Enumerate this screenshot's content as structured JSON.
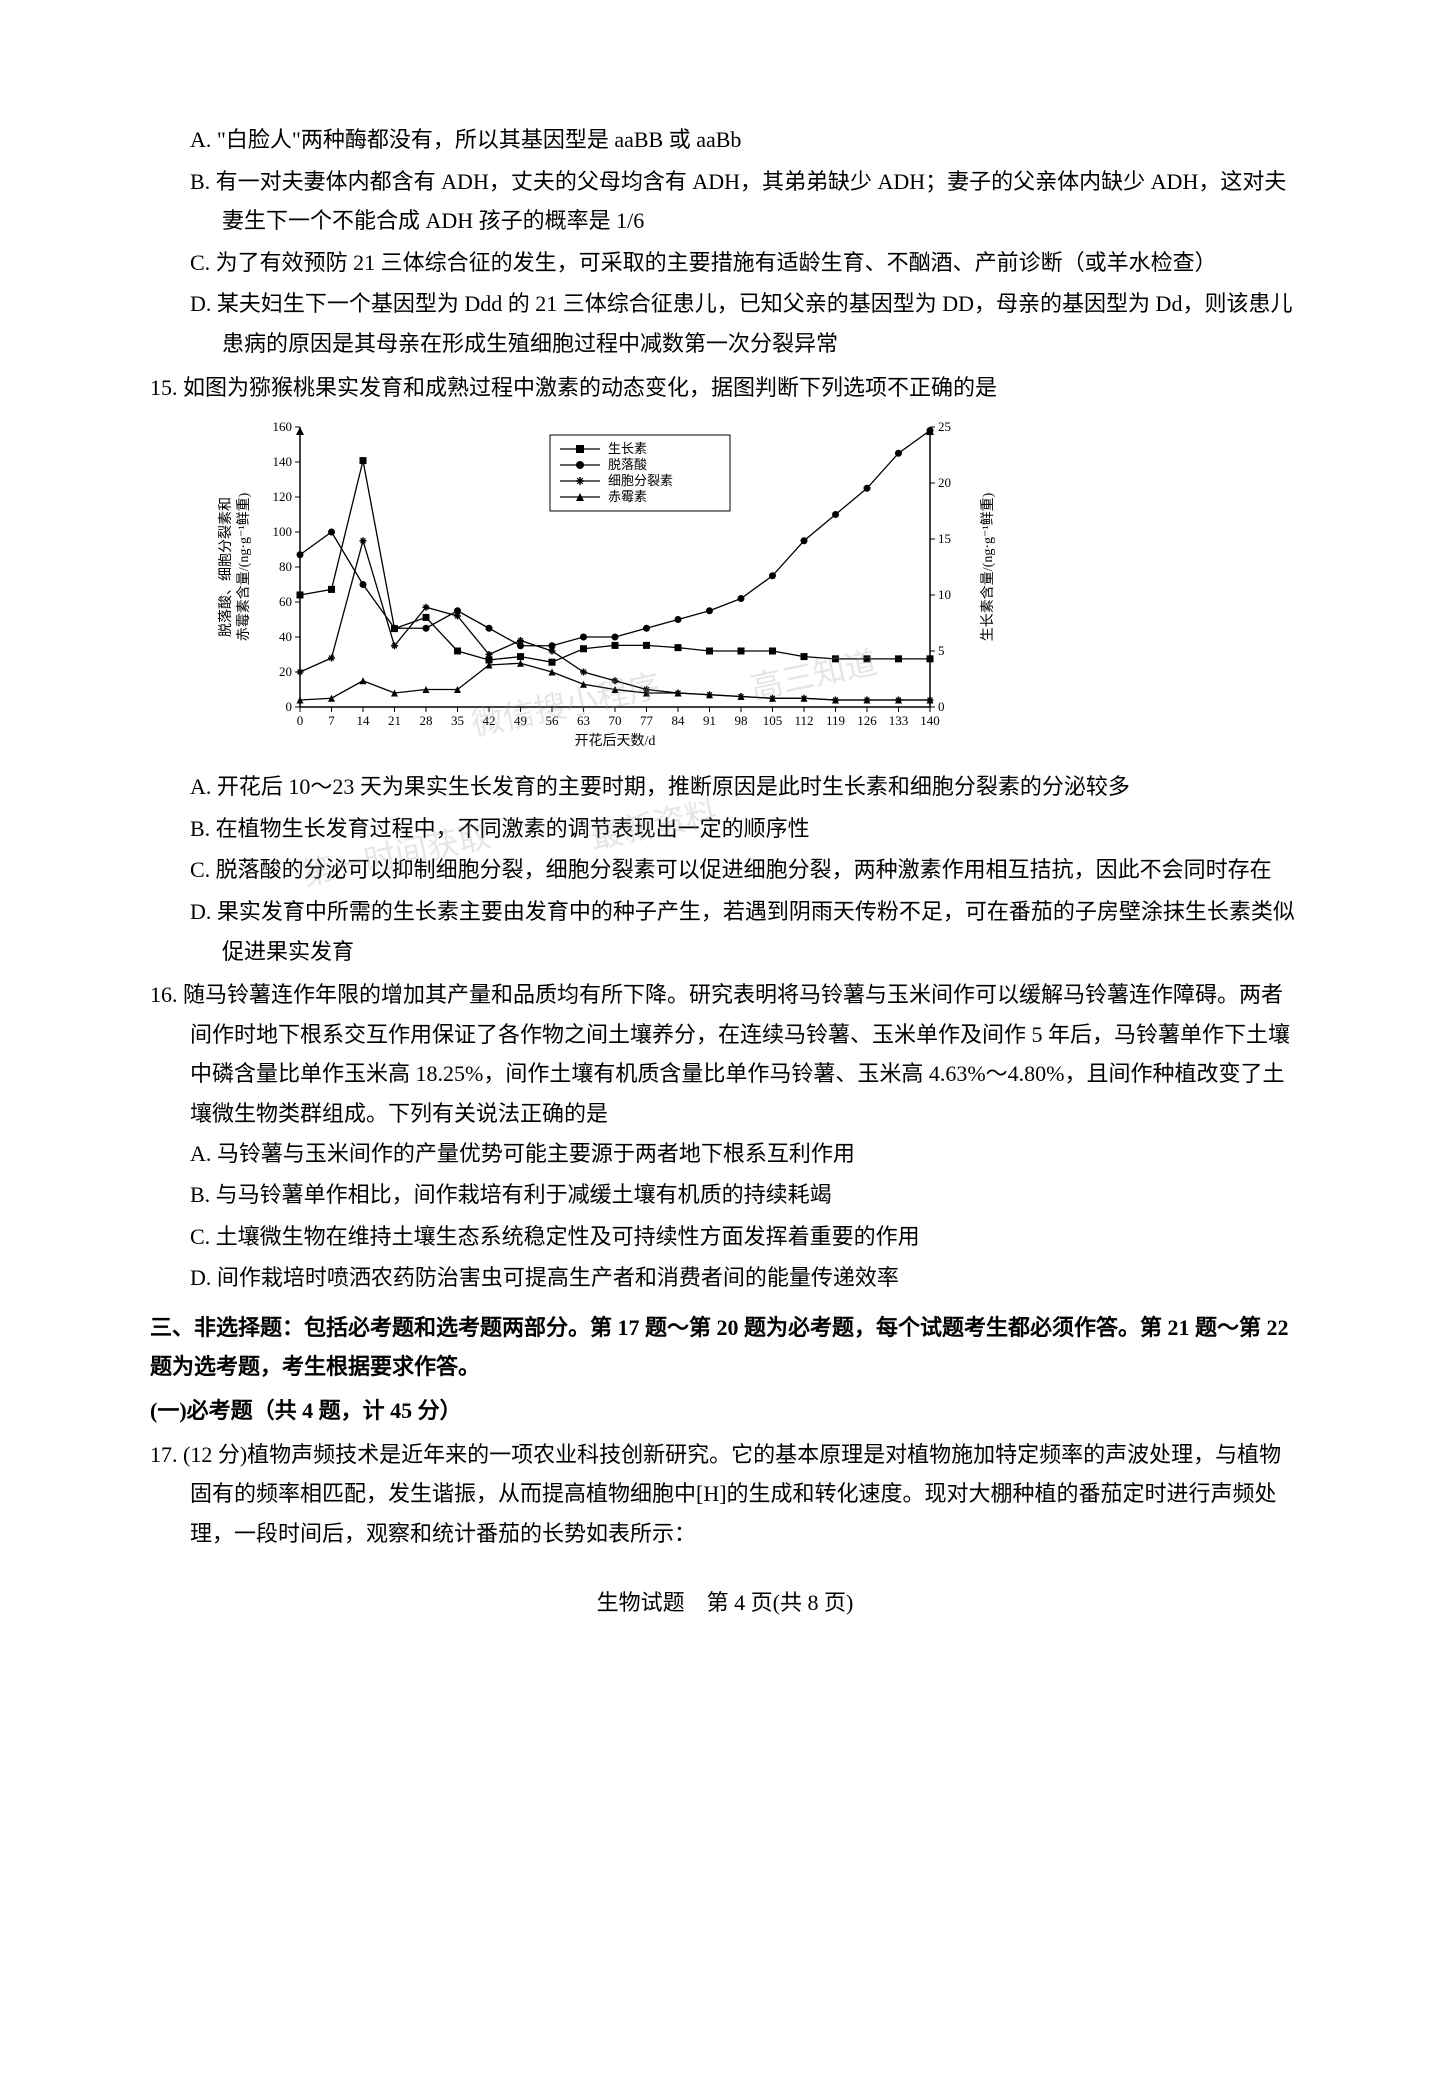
{
  "q14": {
    "opts": {
      "A": "A. \"白脸人\"两种酶都没有，所以其基因型是 aaBB 或 aaBb",
      "B": "B. 有一对夫妻体内都含有 ADH，丈夫的父母均含有 ADH，其弟弟缺少 ADH；妻子的父亲体内缺少 ADH，这对夫妻生下一个不能合成 ADH 孩子的概率是 1/6",
      "C": "C. 为了有效预防 21 三体综合征的发生，可采取的主要措施有适龄生育、不酗酒、产前诊断（或羊水检查）",
      "D": "D. 某夫妇生下一个基因型为 Ddd 的 21 三体综合征患儿，已知父亲的基因型为 DD，母亲的基因型为 Dd，则该患儿患病的原因是其母亲在形成生殖细胞过程中减数第一次分裂异常"
    }
  },
  "q15": {
    "stem": "15. 如图为猕猴桃果实发育和成熟过程中激素的动态变化，据图判断下列选项不正确的是",
    "opts": {
      "A": "A. 开花后 10～23 天为果实生长发育的主要时期，推断原因是此时生长素和细胞分裂素的分泌较多",
      "B": "B. 在植物生长发育过程中，不同激素的调节表现出一定的顺序性",
      "C": "C. 脱落酸的分泌可以抑制细胞分裂，细胞分裂素可以促进细胞分裂，两种激素作用相互拮抗，因此不会同时存在",
      "D": "D. 果实发育中所需的生长素主要由发育中的种子产生，若遇到阴雨天传粉不足，可在番茄的子房壁涂抹生长素类似促进果实发育"
    }
  },
  "q16": {
    "stem": "16. 随马铃薯连作年限的增加其产量和品质均有所下降。研究表明将马铃薯与玉米间作可以缓解马铃薯连作障碍。两者间作时地下根系交互作用保证了各作物之间土壤养分，在连续马铃薯、玉米单作及间作 5 年后，马铃薯单作下土壤中磷含量比单作玉米高 18.25%，间作土壤有机质含量比单作马铃薯、玉米高 4.63%～4.80%，且间作种植改变了土壤微生物类群组成。下列有关说法正确的是",
    "opts": {
      "A": "A. 马铃薯与玉米间作的产量优势可能主要源于两者地下根系互利作用",
      "B": "B. 与马铃薯单作相比，间作栽培有利于减缓土壤有机质的持续耗竭",
      "C": "C. 土壤微生物在维持土壤生态系统稳定性及可持续性方面发挥着重要的作用",
      "D": "D. 间作栽培时喷洒农药防治害虫可提高生产者和消费者间的能量传递效率"
    }
  },
  "section3": "三、非选择题：包括必考题和选考题两部分。第 17 题～第 20 题为必考题，每个试题考生都必须作答。第 21 题～第 22 题为选考题，考生根据要求作答。",
  "sub1": "(一)必考题（共 4 题，计 45 分）",
  "q17": {
    "stem": "17. (12 分)植物声频技术是近年来的一项农业科技创新研究。它的基本原理是对植物施加特定频率的声波处理，与植物固有的频率相匹配，发生谐振，从而提高植物细胞中[H]的生成和转化速度。现对大棚种植的番茄定时进行声频处理，一段时间后，观察和统计番茄的长势如表所示：",
    "body": ""
  },
  "footer": "生物试题　第 4 页(共 8 页)",
  "chart": {
    "type": "line",
    "x_label": "开花后天数/d",
    "y_left_label": "脱落酸、细胞分裂素和\n赤霉素含量/(ng·g⁻¹鲜重)",
    "y_right_label": "生长素含量/(ng·g⁻¹鲜重)",
    "x_ticks": [
      0,
      7,
      14,
      21,
      28,
      35,
      42,
      49,
      56,
      63,
      70,
      77,
      84,
      91,
      98,
      105,
      112,
      119,
      126,
      133,
      140
    ],
    "y_left_ticks": [
      0,
      20,
      40,
      60,
      80,
      100,
      120,
      140,
      160
    ],
    "y_right_ticks": [
      0,
      5,
      10,
      15,
      20,
      25
    ],
    "x_range": [
      0,
      140
    ],
    "y_left_range": [
      0,
      160
    ],
    "y_right_range": [
      0,
      25
    ],
    "legend": [
      "生长素",
      "脱落酸",
      "细胞分裂素",
      "赤霉素"
    ],
    "legend_markers": [
      "square",
      "circle",
      "star",
      "triangle"
    ],
    "series_auxin": {
      "axis": "right",
      "marker": "square",
      "data": [
        [
          0,
          10
        ],
        [
          7,
          10.5
        ],
        [
          14,
          22
        ],
        [
          21,
          7
        ],
        [
          28,
          8
        ],
        [
          35,
          5
        ],
        [
          42,
          4.2
        ],
        [
          49,
          4.5
        ],
        [
          56,
          4
        ],
        [
          63,
          5.2
        ],
        [
          70,
          5.5
        ],
        [
          77,
          5.5
        ],
        [
          84,
          5.3
        ],
        [
          91,
          5
        ],
        [
          98,
          5
        ],
        [
          105,
          5
        ],
        [
          112,
          4.5
        ],
        [
          119,
          4.3
        ],
        [
          126,
          4.3
        ],
        [
          133,
          4.3
        ],
        [
          140,
          4.3
        ]
      ]
    },
    "series_aba": {
      "axis": "left",
      "marker": "circle",
      "data": [
        [
          0,
          87
        ],
        [
          7,
          100
        ],
        [
          14,
          70
        ],
        [
          21,
          45
        ],
        [
          28,
          45
        ],
        [
          35,
          55
        ],
        [
          42,
          45
        ],
        [
          49,
          35
        ],
        [
          56,
          35
        ],
        [
          63,
          40
        ],
        [
          70,
          40
        ],
        [
          77,
          45
        ],
        [
          84,
          50
        ],
        [
          91,
          55
        ],
        [
          98,
          62
        ],
        [
          105,
          75
        ],
        [
          112,
          95
        ],
        [
          119,
          110
        ],
        [
          126,
          125
        ],
        [
          133,
          145
        ],
        [
          140,
          158
        ]
      ]
    },
    "series_ctk": {
      "axis": "left",
      "marker": "star",
      "data": [
        [
          0,
          20
        ],
        [
          7,
          28
        ],
        [
          14,
          95
        ],
        [
          21,
          35
        ],
        [
          28,
          57
        ],
        [
          35,
          52
        ],
        [
          42,
          30
        ],
        [
          49,
          38
        ],
        [
          56,
          32
        ],
        [
          63,
          20
        ],
        [
          70,
          15
        ],
        [
          77,
          10
        ],
        [
          84,
          8
        ],
        [
          91,
          7
        ],
        [
          98,
          6
        ],
        [
          105,
          5
        ],
        [
          112,
          5
        ],
        [
          119,
          4
        ],
        [
          126,
          4
        ],
        [
          133,
          4
        ],
        [
          140,
          4
        ]
      ]
    },
    "series_ga": {
      "axis": "left",
      "marker": "triangle",
      "data": [
        [
          0,
          4
        ],
        [
          7,
          5
        ],
        [
          14,
          15
        ],
        [
          21,
          8
        ],
        [
          28,
          10
        ],
        [
          35,
          10
        ],
        [
          42,
          24
        ],
        [
          49,
          25
        ],
        [
          56,
          20
        ],
        [
          63,
          13
        ],
        [
          70,
          10
        ],
        [
          77,
          8
        ],
        [
          84,
          8
        ],
        [
          91,
          7
        ],
        [
          98,
          6
        ],
        [
          105,
          5
        ],
        [
          112,
          5
        ],
        [
          119,
          4
        ],
        [
          126,
          4
        ],
        [
          133,
          4
        ],
        [
          140,
          4
        ]
      ]
    },
    "colors": {
      "line": "#000000",
      "axis": "#000000",
      "background": "#ffffff"
    },
    "label_fontsize": 14,
    "tick_fontsize": 13
  },
  "watermarks": [
    "微信搜小程序",
    "高三知道",
    "第一时间获取",
    "最新资料"
  ]
}
